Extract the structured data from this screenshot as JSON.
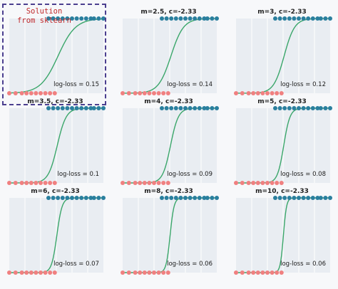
{
  "figure": {
    "annotation": "Solution from sklearn",
    "colors": {
      "curve": "#3aa66a",
      "class0": "#f08080",
      "class1": "#2a7f9e",
      "panel_bg": "#e9edf2",
      "grid": "#ffffff",
      "callout_border": "#4b3f8f",
      "callout_text": "#c0292b"
    }
  },
  "chart_data": [
    {
      "type": "line",
      "title": "",
      "m": 1.8,
      "c": -2.33,
      "log_loss_label": "log-loss = 0.15"
    },
    {
      "type": "line",
      "title": "m=2.5, c=-2.33",
      "m": 2.5,
      "c": -2.33,
      "log_loss_label": "log-loss = 0.14"
    },
    {
      "type": "line",
      "title": "m=3, c=-2.33",
      "m": 3,
      "c": -2.33,
      "log_loss_label": "log-loss = 0.12"
    },
    {
      "type": "line",
      "title": "m=3.5, c=-2.33",
      "m": 3.5,
      "c": -2.33,
      "log_loss_label": "log-loss = 0.1"
    },
    {
      "type": "line",
      "title": "m=4, c=-2.33",
      "m": 4,
      "c": -2.33,
      "log_loss_label": "log-loss = 0.09"
    },
    {
      "type": "line",
      "title": "m=5, c=-2.33",
      "m": 5,
      "c": -2.33,
      "log_loss_label": "log-loss = 0.08"
    },
    {
      "type": "line",
      "title": "m=6, c=-2.33",
      "m": 6,
      "c": -2.33,
      "log_loss_label": "log-loss = 0.07"
    },
    {
      "type": "line",
      "title": "m=8, c=-2.33",
      "m": 8,
      "c": -2.33,
      "log_loss_label": "log-loss = 0.06"
    },
    {
      "type": "line",
      "title": "m=10, c=-2.33",
      "m": 10,
      "c": -2.33,
      "log_loss_label": "log-loss = 0.06"
    }
  ],
  "points": {
    "class0_x": [
      -3.0,
      -2.6,
      -2.2,
      -1.9,
      -1.6,
      -1.3,
      -1.0,
      -0.7,
      -0.4,
      -0.1
    ],
    "class1_x": [
      -0.5,
      -0.2,
      0.1,
      0.4,
      0.7,
      1.0,
      1.3,
      1.6,
      1.9,
      2.2,
      2.4,
      2.7,
      3.0
    ],
    "xlim": [
      -3.0,
      3.0
    ],
    "ylim": [
      0,
      1
    ]
  }
}
